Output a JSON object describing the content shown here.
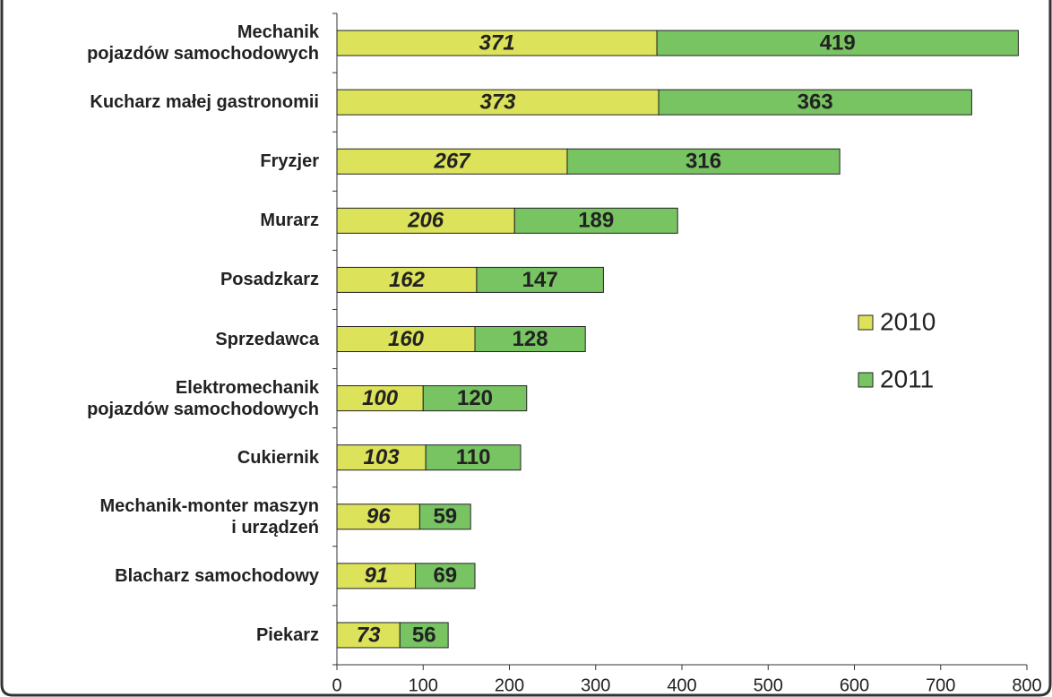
{
  "chart_data": {
    "type": "stacked-bar-horizontal",
    "categories": [
      "Mechanik\npojazdów samochodowych",
      "Kucharz małej gastronomii",
      "Fryzjer",
      "Murarz",
      "Posadzkarz",
      "Sprzedawca",
      "Elektromechanik\npojazdów samochodowych",
      "Cukiernik",
      "Mechanik-monter maszyn\ni urządzeń",
      "Blacharz samochodowy",
      "Piekarz"
    ],
    "series": [
      {
        "name": "2010",
        "color": "#dce25a",
        "values": [
          371,
          373,
          267,
          206,
          162,
          160,
          100,
          103,
          96,
          91,
          73
        ]
      },
      {
        "name": "2011",
        "color": "#78c463",
        "values": [
          419,
          363,
          316,
          189,
          147,
          128,
          120,
          110,
          59,
          69,
          56
        ]
      }
    ],
    "xlim": [
      0,
      800
    ],
    "xticks": [
      0,
      100,
      200,
      300,
      400,
      500,
      600,
      700,
      800
    ],
    "legend": "right"
  }
}
